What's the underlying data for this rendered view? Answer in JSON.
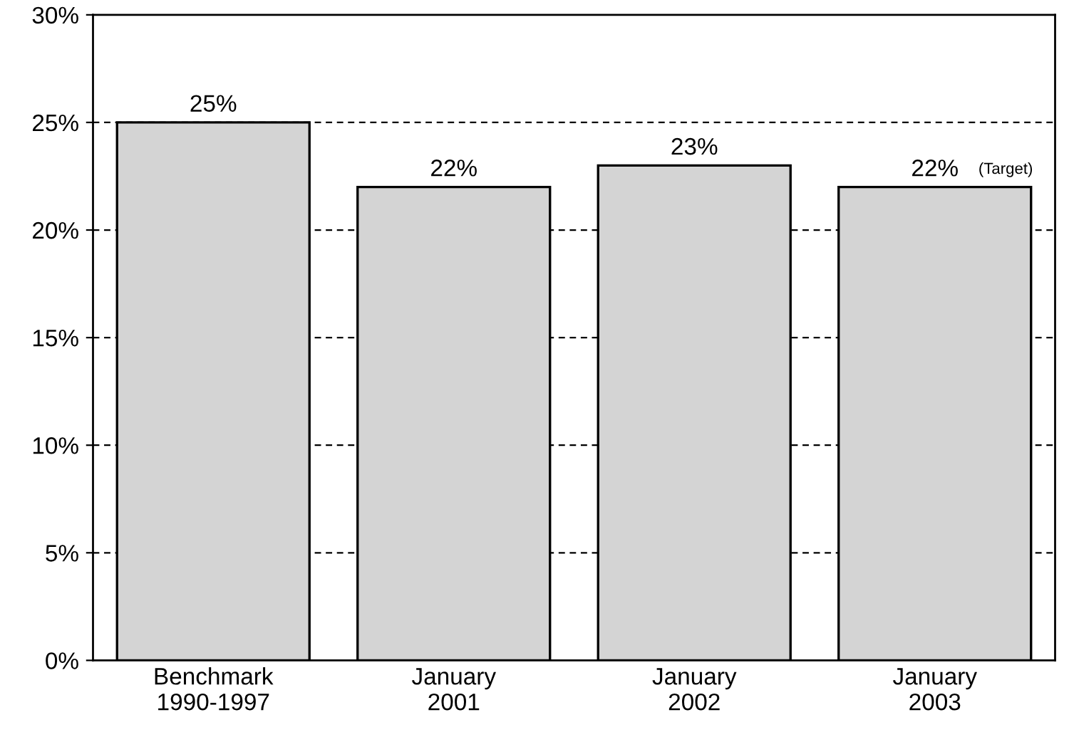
{
  "chart_data": {
    "type": "bar",
    "categories": [
      "Benchmark\n1990-1997",
      "January\n2001",
      "January\n2002",
      "January\n2003"
    ],
    "values": [
      25,
      22,
      23,
      22
    ],
    "value_labels": [
      "25%",
      "22%",
      "23%",
      "22%"
    ],
    "color": "#d4d4d4",
    "ylim": [
      0,
      30
    ],
    "yticks": [
      {
        "value": 0,
        "label": "0%"
      },
      {
        "value": 5,
        "label": "5%"
      },
      {
        "value": 10,
        "label": "10%"
      },
      {
        "value": 15,
        "label": "15%"
      },
      {
        "value": 20,
        "label": "20%"
      },
      {
        "value": 25,
        "label": "25%"
      },
      {
        "value": 30,
        "label": "30%"
      }
    ],
    "grid": "y",
    "line_style": "dashed",
    "annotations": [
      {
        "text": "(Target)",
        "x": "January\n2003",
        "y": 22
      }
    ]
  }
}
